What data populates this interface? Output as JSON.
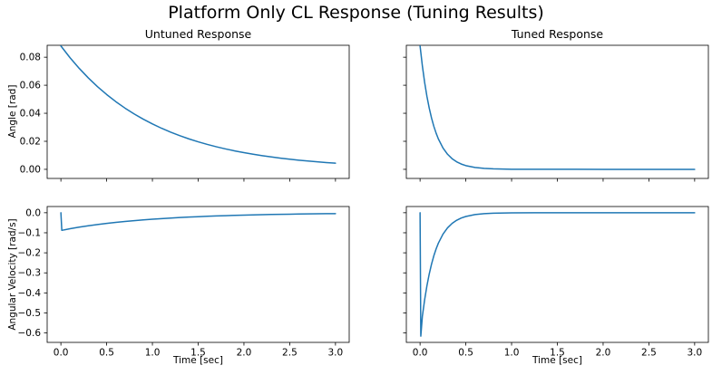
{
  "figure": {
    "title": "Platform Only CL Response (Tuning Results)",
    "background": "#ffffff",
    "line_color": "#1f77b4",
    "spine_color": "#000000",
    "text_color": "#000000"
  },
  "chart_data": [
    {
      "id": "untuned-angle",
      "type": "line",
      "title": "Untuned Response",
      "xlabel": "",
      "ylabel": "Angle [rad]",
      "grid": false,
      "legend": "none",
      "xlim": [
        -0.15,
        3.15
      ],
      "ylim": [
        -0.0065,
        0.0885
      ],
      "xticks": [
        0.0,
        0.5,
        1.0,
        1.5,
        2.0,
        2.5,
        3.0
      ],
      "xtick_labels": [
        "0.0",
        "0.5",
        "1.0",
        "1.5",
        "2.0",
        "2.5",
        "3.0"
      ],
      "show_xtick_labels": false,
      "yticks": [
        0.0,
        0.02,
        0.04,
        0.06,
        0.08
      ],
      "ytick_labels": [
        "0.00",
        "0.02",
        "0.04",
        "0.06",
        "0.08"
      ],
      "show_ytick_labels": true,
      "series": [
        {
          "name": "untuned-angle-response",
          "x": [
            0,
            0.1,
            0.2,
            0.3,
            0.4,
            0.5,
            0.6,
            0.7,
            0.8,
            0.9,
            1.0,
            1.1,
            1.2,
            1.3,
            1.4,
            1.5,
            1.6,
            1.7,
            1.8,
            1.9,
            2.0,
            2.1,
            2.2,
            2.3,
            2.4,
            2.5,
            2.6,
            2.7,
            2.8,
            2.9,
            3.0
          ],
          "y": [
            0.088,
            0.07963,
            0.07205,
            0.06519,
            0.05899,
            0.05337,
            0.0483,
            0.0437,
            0.03954,
            0.03578,
            0.03237,
            0.02929,
            0.02651,
            0.02398,
            0.0217,
            0.01964,
            0.01777,
            0.01608,
            0.01455,
            0.01316,
            0.01191,
            0.01078,
            0.00975,
            0.00882,
            0.00798,
            0.00722,
            0.00654,
            0.00591,
            0.00535,
            0.00484,
            0.00438
          ]
        }
      ]
    },
    {
      "id": "tuned-angle",
      "type": "line",
      "title": "Tuned Response",
      "xlabel": "",
      "ylabel": "",
      "grid": false,
      "legend": "none",
      "xlim": [
        -0.15,
        3.15
      ],
      "ylim": [
        -0.0065,
        0.0885
      ],
      "xticks": [
        0.0,
        0.5,
        1.0,
        1.5,
        2.0,
        2.5,
        3.0
      ],
      "xtick_labels": [
        "0.0",
        "0.5",
        "1.0",
        "1.5",
        "2.0",
        "2.5",
        "3.0"
      ],
      "show_xtick_labels": false,
      "yticks": [
        0.0,
        0.02,
        0.04,
        0.06,
        0.08
      ],
      "ytick_labels": [
        "0.00",
        "0.02",
        "0.04",
        "0.06",
        "0.08"
      ],
      "show_ytick_labels": false,
      "series": [
        {
          "name": "tuned-angle-response",
          "x": [
            0,
            0.025,
            0.05,
            0.075,
            0.1,
            0.125,
            0.15,
            0.175,
            0.2,
            0.25,
            0.3,
            0.35,
            0.4,
            0.45,
            0.5,
            0.6,
            0.7,
            0.8,
            1.0,
            1.25,
            1.5,
            2.0,
            2.5,
            3.0
          ],
          "y": [
            0.088,
            0.07387,
            0.06201,
            0.05206,
            0.0437,
            0.03668,
            0.03079,
            0.02585,
            0.0217,
            0.01529,
            0.01078,
            0.00759,
            0.00535,
            0.00377,
            0.00266,
            0.00132,
            0.00066,
            0.00033,
            8e-05,
            2e-05,
            1e-05,
            0.0,
            0.0,
            0.0
          ]
        }
      ]
    },
    {
      "id": "untuned-angular-velocity",
      "type": "line",
      "title": "",
      "xlabel": "Time [sec]",
      "ylabel": "Angular Velocity [rad/s]",
      "grid": false,
      "legend": "none",
      "xlim": [
        -0.15,
        3.15
      ],
      "ylim": [
        -0.647,
        0.031
      ],
      "xticks": [
        0.0,
        0.5,
        1.0,
        1.5,
        2.0,
        2.5,
        3.0
      ],
      "xtick_labels": [
        "0.0",
        "0.5",
        "1.0",
        "1.5",
        "2.0",
        "2.5",
        "3.0"
      ],
      "show_xtick_labels": true,
      "yticks": [
        0.0,
        -0.1,
        -0.2,
        -0.3,
        -0.4,
        -0.5,
        -0.6
      ],
      "ytick_labels": [
        "0.0",
        "−0.1",
        "−0.2",
        "−0.3",
        "−0.4",
        "−0.5",
        "−0.6"
      ],
      "show_ytick_labels": true,
      "series": [
        {
          "name": "untuned-angular-velocity-response",
          "x": [
            0,
            0.01,
            0.1,
            0.2,
            0.3,
            0.4,
            0.5,
            0.6,
            0.7,
            0.8,
            0.9,
            1.0,
            1.1,
            1.2,
            1.3,
            1.4,
            1.5,
            1.6,
            1.7,
            1.8,
            1.9,
            2.0,
            2.1,
            2.2,
            2.3,
            2.4,
            2.5,
            2.6,
            2.7,
            2.8,
            2.9,
            3.0
          ],
          "y": [
            0,
            -0.08791,
            -0.07963,
            -0.07205,
            -0.06519,
            -0.05899,
            -0.05337,
            -0.0483,
            -0.0437,
            -0.03954,
            -0.03578,
            -0.03237,
            -0.02929,
            -0.02651,
            -0.02398,
            -0.0217,
            -0.01964,
            -0.01777,
            -0.01608,
            -0.01455,
            -0.01316,
            -0.01191,
            -0.01078,
            -0.00975,
            -0.00882,
            -0.00798,
            -0.00722,
            -0.00654,
            -0.00591,
            -0.00535,
            -0.00484,
            -0.00438
          ]
        }
      ]
    },
    {
      "id": "tuned-angular-velocity",
      "type": "line",
      "title": "",
      "xlabel": "Time [sec]",
      "ylabel": "",
      "grid": false,
      "legend": "none",
      "xlim": [
        -0.15,
        3.15
      ],
      "ylim": [
        -0.647,
        0.031
      ],
      "xticks": [
        0.0,
        0.5,
        1.0,
        1.5,
        2.0,
        2.5,
        3.0
      ],
      "xtick_labels": [
        "0.0",
        "0.5",
        "1.0",
        "1.5",
        "2.0",
        "2.5",
        "3.0"
      ],
      "show_xtick_labels": true,
      "yticks": [
        0.0,
        -0.1,
        -0.2,
        -0.3,
        -0.4,
        -0.5,
        -0.6
      ],
      "ytick_labels": [
        "0.0",
        "−0.1",
        "−0.2",
        "−0.3",
        "−0.4",
        "−0.5",
        "−0.6"
      ],
      "show_ytick_labels": false,
      "series": [
        {
          "name": "tuned-angular-velocity-response",
          "x": [
            0,
            0.008,
            0.025,
            0.05,
            0.075,
            0.1,
            0.125,
            0.15,
            0.175,
            0.2,
            0.25,
            0.3,
            0.35,
            0.4,
            0.45,
            0.5,
            0.6,
            0.7,
            0.8,
            1.0,
            1.25,
            1.5,
            2.0,
            2.5,
            3.0
          ],
          "y": [
            0,
            -0.616,
            -0.51713,
            -0.43409,
            -0.36438,
            -0.30588,
            -0.25676,
            -0.21554,
            -0.18093,
            -0.15188,
            -0.10704,
            -0.07543,
            -0.05316,
            -0.03746,
            -0.0264,
            -0.01861,
            -0.00924,
            -0.00459,
            -0.00228,
            -0.00056,
            -0.0001,
            -2e-05,
            0.0,
            0.0,
            0.0
          ]
        }
      ]
    }
  ]
}
